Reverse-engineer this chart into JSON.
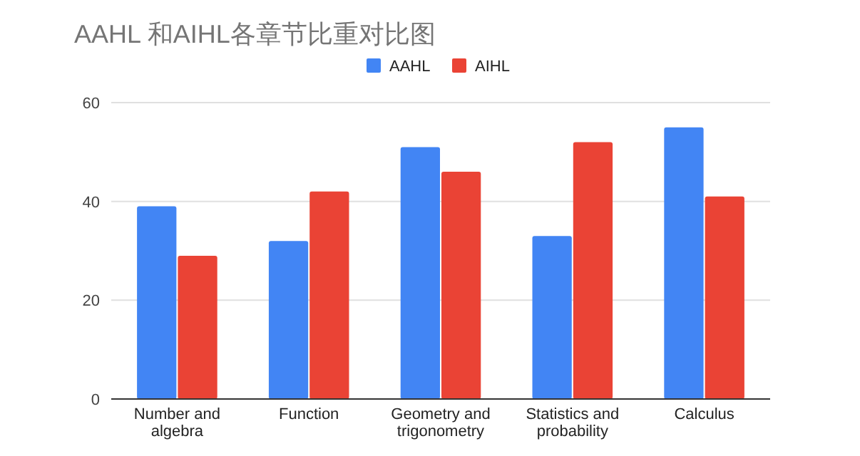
{
  "chart_data": {
    "type": "bar",
    "title": "AAHL 和AIHL各章节比重对比图",
    "categories": [
      "Number and algebra",
      "Function",
      "Geometry and trigonometry",
      "Statistics and probability",
      "Calculus"
    ],
    "series": [
      {
        "name": "AAHL",
        "color": "#4285f4",
        "values": [
          39,
          32,
          51,
          33,
          55
        ]
      },
      {
        "name": "AIHL",
        "color": "#ea4335",
        "values": [
          29,
          42,
          46,
          52,
          41
        ]
      }
    ],
    "ylim": [
      0,
      60
    ],
    "yticks": [
      0,
      20,
      40,
      60
    ],
    "grid": "y",
    "legend": "top"
  }
}
